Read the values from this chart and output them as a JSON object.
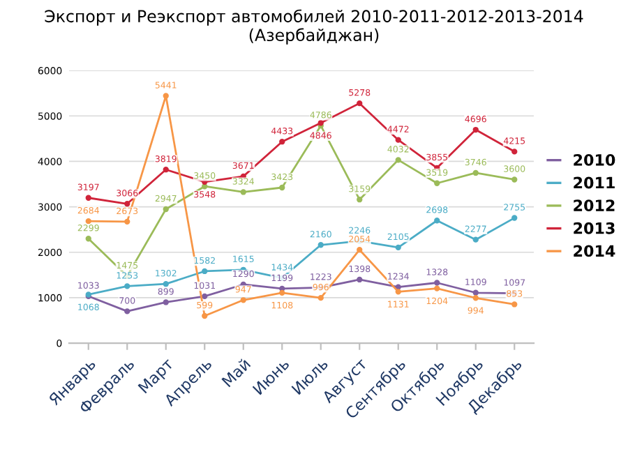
{
  "chart_data": {
    "type": "line",
    "title": "Экспорт и Реэкспорт автомобилей 2010-2011-2012-2013-2014\n(Азербайджан)",
    "categories": [
      "Январь",
      "Февраль",
      "Март",
      "Апрель",
      "Май",
      "Июнь",
      "Июль",
      "Август",
      "Сентябрь",
      "Октябрь",
      "Ноябрь",
      "Декабрь"
    ],
    "series": [
      {
        "name": "2010",
        "color": "#7f5fa0",
        "values": [
          1033,
          700,
          899,
          1031,
          1290,
          1199,
          1223,
          1398,
          1234,
          1328,
          1109,
          1097
        ]
      },
      {
        "name": "2011",
        "color": "#4bacc6",
        "values": [
          1068,
          1253,
          1302,
          1582,
          1615,
          1434,
          2160,
          2246,
          2105,
          2698,
          2277,
          2755
        ]
      },
      {
        "name": "2012",
        "color": "#9bbb59",
        "values": [
          2299,
          1475,
          2947,
          3450,
          3324,
          3423,
          4786,
          3159,
          4032,
          3519,
          3746,
          3600
        ]
      },
      {
        "name": "2013",
        "color": "#d0243a",
        "values": [
          3197,
          3066,
          3819,
          3548,
          3671,
          4433,
          4846,
          5278,
          4472,
          3855,
          4696,
          4215
        ]
      },
      {
        "name": "2014",
        "color": "#f79646",
        "values": [
          2684,
          2673,
          5441,
          599,
          947,
          1108,
          996,
          2054,
          1131,
          1204,
          994,
          853
        ]
      }
    ],
    "ylim": [
      0,
      6000
    ],
    "yticks": [
      0,
      1000,
      2000,
      3000,
      4000,
      5000,
      6000
    ],
    "grid": "y",
    "legend": "right",
    "marker": "circle",
    "line_style": "solid",
    "data_labels": true
  }
}
